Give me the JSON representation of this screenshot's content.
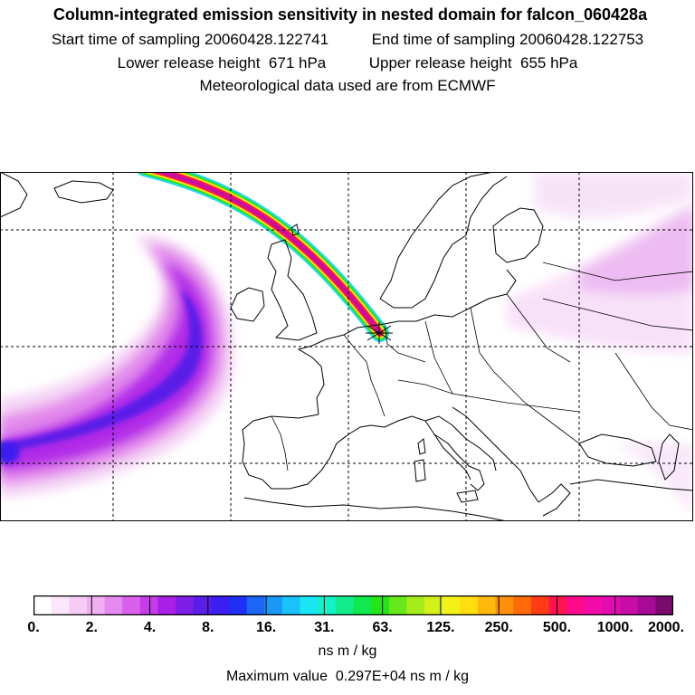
{
  "title": {
    "main": "Column-integrated emission sensitivity in nested domain for falcon_060428a",
    "start_label": "Start time of sampling",
    "start_value": "20060428.122741",
    "end_label": "End time of sampling",
    "end_value": "20060428.122753",
    "lower_label": "Lower release height",
    "lower_value": "671 hPa",
    "upper_label": "Upper release height",
    "upper_value": "655 hPa",
    "met": "Meteorological data used are from ECMWF"
  },
  "colorbar": {
    "ticks": [
      "0.",
      "2.",
      "4.",
      "8.",
      "16.",
      "31.",
      "63.",
      "125.",
      "250.",
      "500.",
      "1000.",
      "2000."
    ],
    "colors": [
      "#ffffff",
      "#fbe6fb",
      "#f6ccf6",
      "#efb0f2",
      "#e58aef",
      "#d860ec",
      "#c63ce8",
      "#a91fe6",
      "#7c1ee6",
      "#5a1ee8",
      "#3c1ef0",
      "#1f2ff4",
      "#1b66f5",
      "#1a98f6",
      "#19c2f8",
      "#19e6f2",
      "#14f0c8",
      "#10ec8c",
      "#10e84e",
      "#22e61a",
      "#66e81a",
      "#a6ec1a",
      "#d4f01a",
      "#f2f21a",
      "#ffde10",
      "#ffb80c",
      "#ff900a",
      "#ff6a0a",
      "#ff3c14",
      "#ff1450",
      "#ff0c8c",
      "#f40ca8",
      "#e20cb0",
      "#c80ca6",
      "#a80a96",
      "#7a0a6e"
    ],
    "units": "ns m / kg",
    "max_label": "Maximum value",
    "max_value": "0.297E+04 ns m / kg"
  },
  "map": {
    "release_site": "plume origin marker",
    "plume_colors": [
      "#1fd8ff",
      "#22e61a",
      "#ffde10",
      "#ff1450",
      "#c80ca6"
    ]
  }
}
